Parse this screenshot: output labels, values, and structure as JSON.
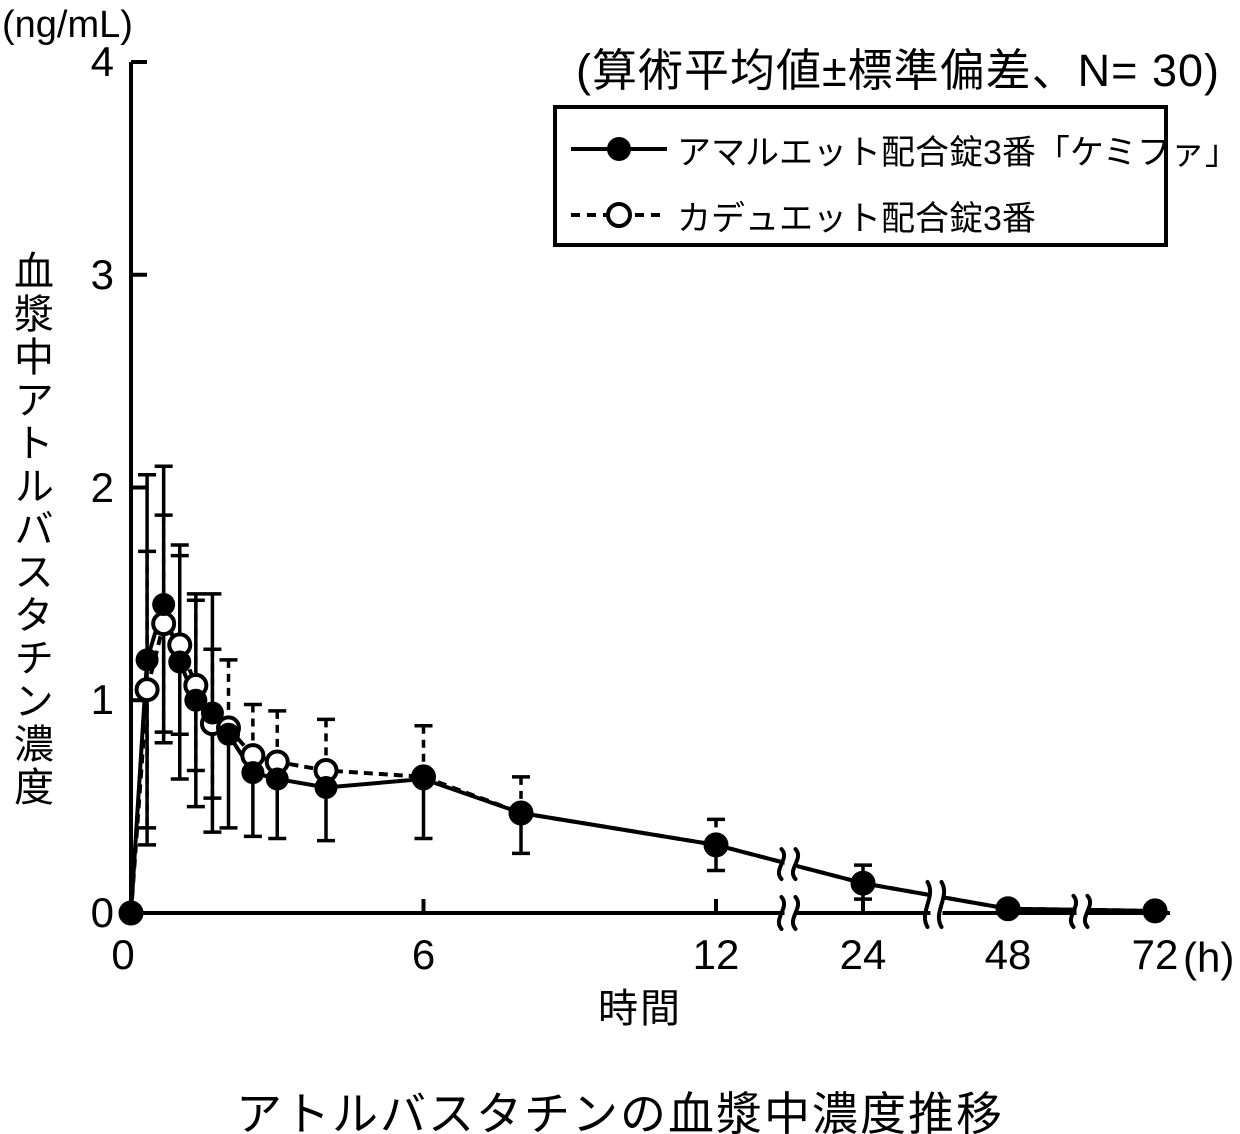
{
  "header": {
    "annotation": "(算術平均値±標準偏差、N= 30)"
  },
  "axes": {
    "y_unit": "(ng/mL)",
    "y_label": "血漿中アトルバスタチン濃度",
    "x_label": "時間",
    "x_unit": "(h)"
  },
  "legend": {
    "items": [
      {
        "label": "アマルエット配合錠3番「ケミファ」",
        "marker": "filled-circle",
        "line": "solid"
      },
      {
        "label": "カデュエット配合錠3番",
        "marker": "open-circle",
        "line": "dashed"
      }
    ]
  },
  "caption": "アトルバスタチンの血漿中濃度推移",
  "chart_data": {
    "type": "line",
    "title": "アトルバスタチンの血漿中濃度推移",
    "xlabel": "時間 (h)",
    "ylabel": "血漿中アトルバスタチン濃度 (ng/mL)",
    "sample_size": 30,
    "error_bars": "arithmetic mean ± SD",
    "ylim": [
      0,
      4
    ],
    "y_ticks": [
      0,
      1,
      2,
      3,
      4
    ],
    "x_ticks": [
      0,
      6,
      12,
      24,
      48,
      72
    ],
    "x_axis_breaks_between": [
      [
        12,
        24
      ],
      [
        24,
        48
      ],
      [
        48,
        72
      ]
    ],
    "x": [
      0,
      0.33,
      0.67,
      1,
      1.33,
      1.67,
      2,
      2.5,
      3,
      4,
      6,
      8,
      12,
      24,
      48,
      72
    ],
    "series": [
      {
        "name": "アマルエット配合錠3番「ケミファ」",
        "marker": "filled",
        "line": "solid",
        "values": [
          0,
          1.19,
          1.45,
          1.18,
          1.0,
          0.94,
          0.84,
          0.66,
          0.63,
          0.59,
          0.63,
          0.47,
          0.32,
          0.14,
          0.02,
          0.01
        ],
        "sd": [
          0,
          0.87,
          0.65,
          0.55,
          0.5,
          0.56,
          0.44,
          0.3,
          0.28,
          0.25,
          0.28,
          0.19,
          0.12,
          0.075,
          0,
          0
        ]
      },
      {
        "name": "カデュエット配合錠3番",
        "marker": "open",
        "line": "dashed",
        "values": [
          0,
          1.05,
          1.36,
          1.26,
          1.07,
          0.89,
          0.87,
          0.74,
          0.71,
          0.67,
          0.64,
          0.47,
          0.32,
          0.14,
          0.02,
          0.01
        ],
        "sd": [
          0,
          0.65,
          0.51,
          0.42,
          0.4,
          0.35,
          0.32,
          0.24,
          0.24,
          0.24,
          0.24,
          0.17,
          0.12,
          0.085,
          0,
          0
        ]
      }
    ],
    "legend_position": "upper right",
    "grid": false
  }
}
